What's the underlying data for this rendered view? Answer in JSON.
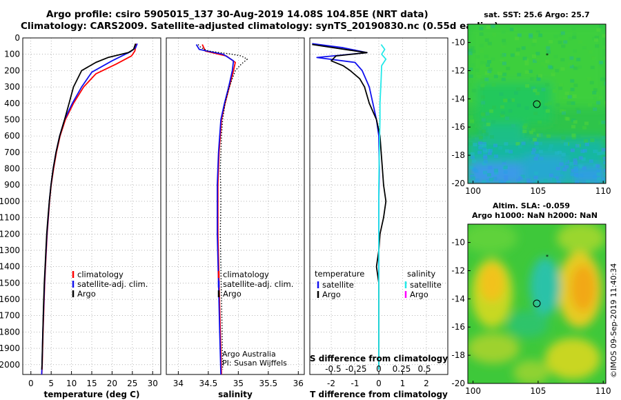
{
  "title": {
    "line1": "Argo profile: csiro 5905015_137 30-Aug-2019 14.08S 104.85E (NRT data)",
    "line2": "Climatology: CARS2009. Satellite-adjusted climatology: synTS_20190830.nc (0.55d earlier)"
  },
  "colors": {
    "climatology": "#ff0000",
    "satellite": "#1010ee",
    "argo": "#000000",
    "sal_satellite": "#22e8e8",
    "sal_argo": "#ff00ff"
  },
  "chart_data": [
    {
      "type": "line",
      "name": "temperature-panel",
      "xlabel": "temperature (deg C)",
      "xlim": [
        -2,
        32
      ],
      "xticks": [
        0,
        5,
        10,
        15,
        20,
        25,
        30
      ],
      "ylim": [
        0,
        2060
      ],
      "yticks": [
        0,
        100,
        200,
        300,
        400,
        500,
        600,
        700,
        800,
        900,
        1000,
        1100,
        1200,
        1300,
        1400,
        1500,
        1600,
        1700,
        1800,
        1900,
        2000
      ],
      "series": [
        {
          "name": "climatology",
          "color": "#ff0000",
          "points": [
            [
              26,
              35
            ],
            [
              25.6,
              80
            ],
            [
              24.8,
              110
            ],
            [
              21,
              160
            ],
            [
              16,
              220
            ],
            [
              13,
              300
            ],
            [
              10.5,
              400
            ],
            [
              8.5,
              500
            ],
            [
              7.2,
              600
            ],
            [
              6.3,
              700
            ],
            [
              5.6,
              800
            ],
            [
              5.0,
              900
            ],
            [
              4.6,
              1000
            ],
            [
              4.3,
              1100
            ],
            [
              4.0,
              1200
            ],
            [
              3.8,
              1300
            ],
            [
              3.6,
              1400
            ],
            [
              3.4,
              1500
            ],
            [
              3.2,
              1650
            ],
            [
              3.0,
              1800
            ],
            [
              2.8,
              2000
            ],
            [
              2.7,
              2060
            ]
          ]
        },
        {
          "name": "satellite-adj. clim.",
          "color": "#1010ee",
          "points": [
            [
              26.2,
              35
            ],
            [
              25.8,
              60
            ],
            [
              24.5,
              85
            ],
            [
              20,
              140
            ],
            [
              15,
              210
            ],
            [
              12.5,
              300
            ],
            [
              10.2,
              400
            ],
            [
              8.3,
              500
            ],
            [
              7.1,
              600
            ],
            [
              6.2,
              700
            ],
            [
              5.5,
              800
            ],
            [
              4.95,
              900
            ],
            [
              4.55,
              1000
            ],
            [
              4.25,
              1100
            ],
            [
              3.95,
              1200
            ],
            [
              3.75,
              1300
            ],
            [
              3.55,
              1400
            ],
            [
              3.35,
              1500
            ],
            [
              3.15,
              1650
            ],
            [
              2.95,
              1800
            ],
            [
              2.75,
              2000
            ],
            [
              2.65,
              2060
            ]
          ]
        },
        {
          "name": "Argo",
          "color": "#000000",
          "points": [
            [
              25.8,
              35
            ],
            [
              25.3,
              70
            ],
            [
              24,
              90
            ],
            [
              19,
              120
            ],
            [
              16,
              150
            ],
            [
              12.5,
              200
            ],
            [
              10.5,
              300
            ],
            [
              9.4,
              400
            ],
            [
              8.3,
              500
            ],
            [
              7.1,
              600
            ],
            [
              6.2,
              700
            ],
            [
              5.5,
              800
            ],
            [
              4.95,
              900
            ],
            [
              4.55,
              1000
            ],
            [
              4.2,
              1100
            ],
            [
              3.9,
              1200
            ],
            [
              3.7,
              1300
            ],
            [
              3.5,
              1400
            ],
            [
              3.3,
              1500
            ],
            [
              3.1,
              1650
            ],
            [
              2.95,
              1800
            ],
            [
              2.75,
              2000
            ],
            [
              2.7,
              2030
            ]
          ]
        }
      ],
      "legend": [
        "climatology",
        "satellite-adj. clim.",
        "Argo"
      ]
    },
    {
      "type": "line",
      "name": "salinity-panel",
      "xlabel": "salinity",
      "xlim": [
        33.8,
        36.1
      ],
      "xticks": [
        34,
        34.5,
        35,
        35.5,
        36
      ],
      "series": [
        {
          "name": "climatology",
          "color": "#ff0000",
          "points": [
            [
              34.4,
              40
            ],
            [
              34.45,
              80
            ],
            [
              34.8,
              110
            ],
            [
              34.95,
              150
            ],
            [
              34.92,
              200
            ],
            [
              34.85,
              300
            ],
            [
              34.78,
              400
            ],
            [
              34.72,
              500
            ],
            [
              34.68,
              700
            ],
            [
              34.66,
              900
            ],
            [
              34.66,
              1200
            ],
            [
              34.68,
              1500
            ],
            [
              34.7,
              1800
            ],
            [
              34.72,
              2060
            ]
          ]
        },
        {
          "name": "satellite-adj. clim.",
          "color": "#1010ee",
          "points": [
            [
              34.3,
              40
            ],
            [
              34.35,
              70
            ],
            [
              34.75,
              100
            ],
            [
              34.92,
              140
            ],
            [
              34.9,
              200
            ],
            [
              34.84,
              300
            ],
            [
              34.77,
              400
            ],
            [
              34.71,
              500
            ],
            [
              34.67,
              700
            ],
            [
              34.65,
              900
            ],
            [
              34.65,
              1200
            ],
            [
              34.67,
              1500
            ],
            [
              34.69,
              1800
            ],
            [
              34.71,
              2060
            ]
          ]
        },
        {
          "name": "Argo",
          "color": "#000000",
          "dotted": true,
          "points": [
            [
              34.33,
              40
            ],
            [
              34.38,
              60
            ],
            [
              34.5,
              80
            ],
            [
              34.9,
              100
            ],
            [
              35.05,
              110
            ],
            [
              35.15,
              130
            ],
            [
              35.05,
              160
            ],
            [
              34.95,
              200
            ],
            [
              34.85,
              300
            ],
            [
              34.78,
              400
            ],
            [
              34.74,
              500
            ],
            [
              34.72,
              600
            ],
            [
              34.7,
              800
            ],
            [
              34.71,
              1000
            ],
            [
              34.7,
              1200
            ],
            [
              34.71,
              1400
            ],
            [
              34.72,
              1600
            ],
            [
              34.73,
              1800
            ],
            [
              34.74,
              2030
            ]
          ]
        }
      ],
      "legend": [
        "climatology",
        "satellite-adj. clim.",
        "Argo"
      ],
      "credits": [
        "Argo Australia",
        "PI: Susan Wijffels"
      ]
    },
    {
      "type": "line",
      "name": "difference-panel",
      "xlabel": "T difference from climatology",
      "xlim": [
        -2.9,
        2.9
      ],
      "xticks": [
        -2,
        -1,
        0,
        1,
        2
      ],
      "x2label": "S difference from climatology",
      "x2ticks": [
        -0.5,
        -0.25,
        0,
        0.25,
        0.5
      ],
      "x2ticklabels": [
        "-0.5",
        "-0.25",
        "0",
        "0.25",
        "0.5"
      ],
      "series": [
        {
          "name": "satellite",
          "group": "temperature",
          "color": "#1010ee",
          "points": [
            [
              -2.8,
              35
            ],
            [
              -1.5,
              60
            ],
            [
              -0.5,
              90
            ],
            [
              -2.6,
              120
            ],
            [
              -1,
              150
            ],
            [
              -0.7,
              200
            ],
            [
              -0.4,
              300
            ],
            [
              -0.25,
              400
            ],
            [
              -0.1,
              500
            ],
            [
              0,
              600
            ],
            [
              0.02,
              800
            ],
            [
              0,
              1000
            ],
            [
              0,
              1200
            ],
            [
              0,
              1500
            ],
            [
              0,
              1800
            ],
            [
              0,
              2030
            ]
          ]
        },
        {
          "name": "Argo",
          "group": "temperature",
          "color": "#000000",
          "points": [
            [
              -2.8,
              40
            ],
            [
              -1.2,
              75
            ],
            [
              -0.5,
              90
            ],
            [
              -1.8,
              110
            ],
            [
              -2.0,
              140
            ],
            [
              -1.5,
              170
            ],
            [
              -1.2,
              200
            ],
            [
              -0.8,
              250
            ],
            [
              -0.6,
              300
            ],
            [
              -0.4,
              400
            ],
            [
              -0.1,
              500
            ],
            [
              0.05,
              600
            ],
            [
              0.1,
              700
            ],
            [
              0.15,
              800
            ],
            [
              0.2,
              900
            ],
            [
              0.3,
              1000
            ],
            [
              0.2,
              1100
            ],
            [
              0.05,
              1200
            ],
            [
              0,
              1300
            ],
            [
              -0.1,
              1400
            ],
            [
              0,
              1500
            ],
            [
              0,
              1800
            ],
            [
              0,
              2030
            ]
          ]
        },
        {
          "name": "satellite",
          "group": "salinity",
          "color": "#22e8e8",
          "points": [
            [
              0.1,
              40
            ],
            [
              0.25,
              70
            ],
            [
              0.12,
              100
            ],
            [
              0.3,
              130
            ],
            [
              0.12,
              170
            ],
            [
              0.1,
              250
            ],
            [
              0.05,
              400
            ],
            [
              0.05,
              500
            ],
            [
              0.02,
              700
            ],
            [
              0,
              900
            ],
            [
              0,
              1200
            ],
            [
              0,
              1500
            ],
            [
              0,
              2030
            ]
          ]
        },
        {
          "name": "Argo",
          "group": "salinity",
          "color": "#ff00ff",
          "points": []
        }
      ],
      "legend_left_title": "temperature",
      "legend_right_title": "salinity",
      "legend_left": [
        "satellite",
        "Argo"
      ],
      "legend_right": [
        "satellite",
        "Argo"
      ]
    }
  ],
  "maps": [
    {
      "name": "sst-map",
      "title": "sat. SST: 25.6 Argo: 25.7",
      "xticks": [
        100,
        105,
        110
      ],
      "yticks": [
        -10,
        -12,
        -14,
        -16,
        -18,
        -20
      ]
    },
    {
      "name": "sla-map",
      "title1": "Altim. SLA: -0.059",
      "title2": "Argo h1000: NaN h2000: NaN",
      "xticks": [
        100,
        105,
        110
      ],
      "yticks": [
        -10,
        -12,
        -14,
        -16,
        -18,
        -20
      ]
    }
  ],
  "stamp": "©IMOS 09-Sep-2019 11:40:34"
}
